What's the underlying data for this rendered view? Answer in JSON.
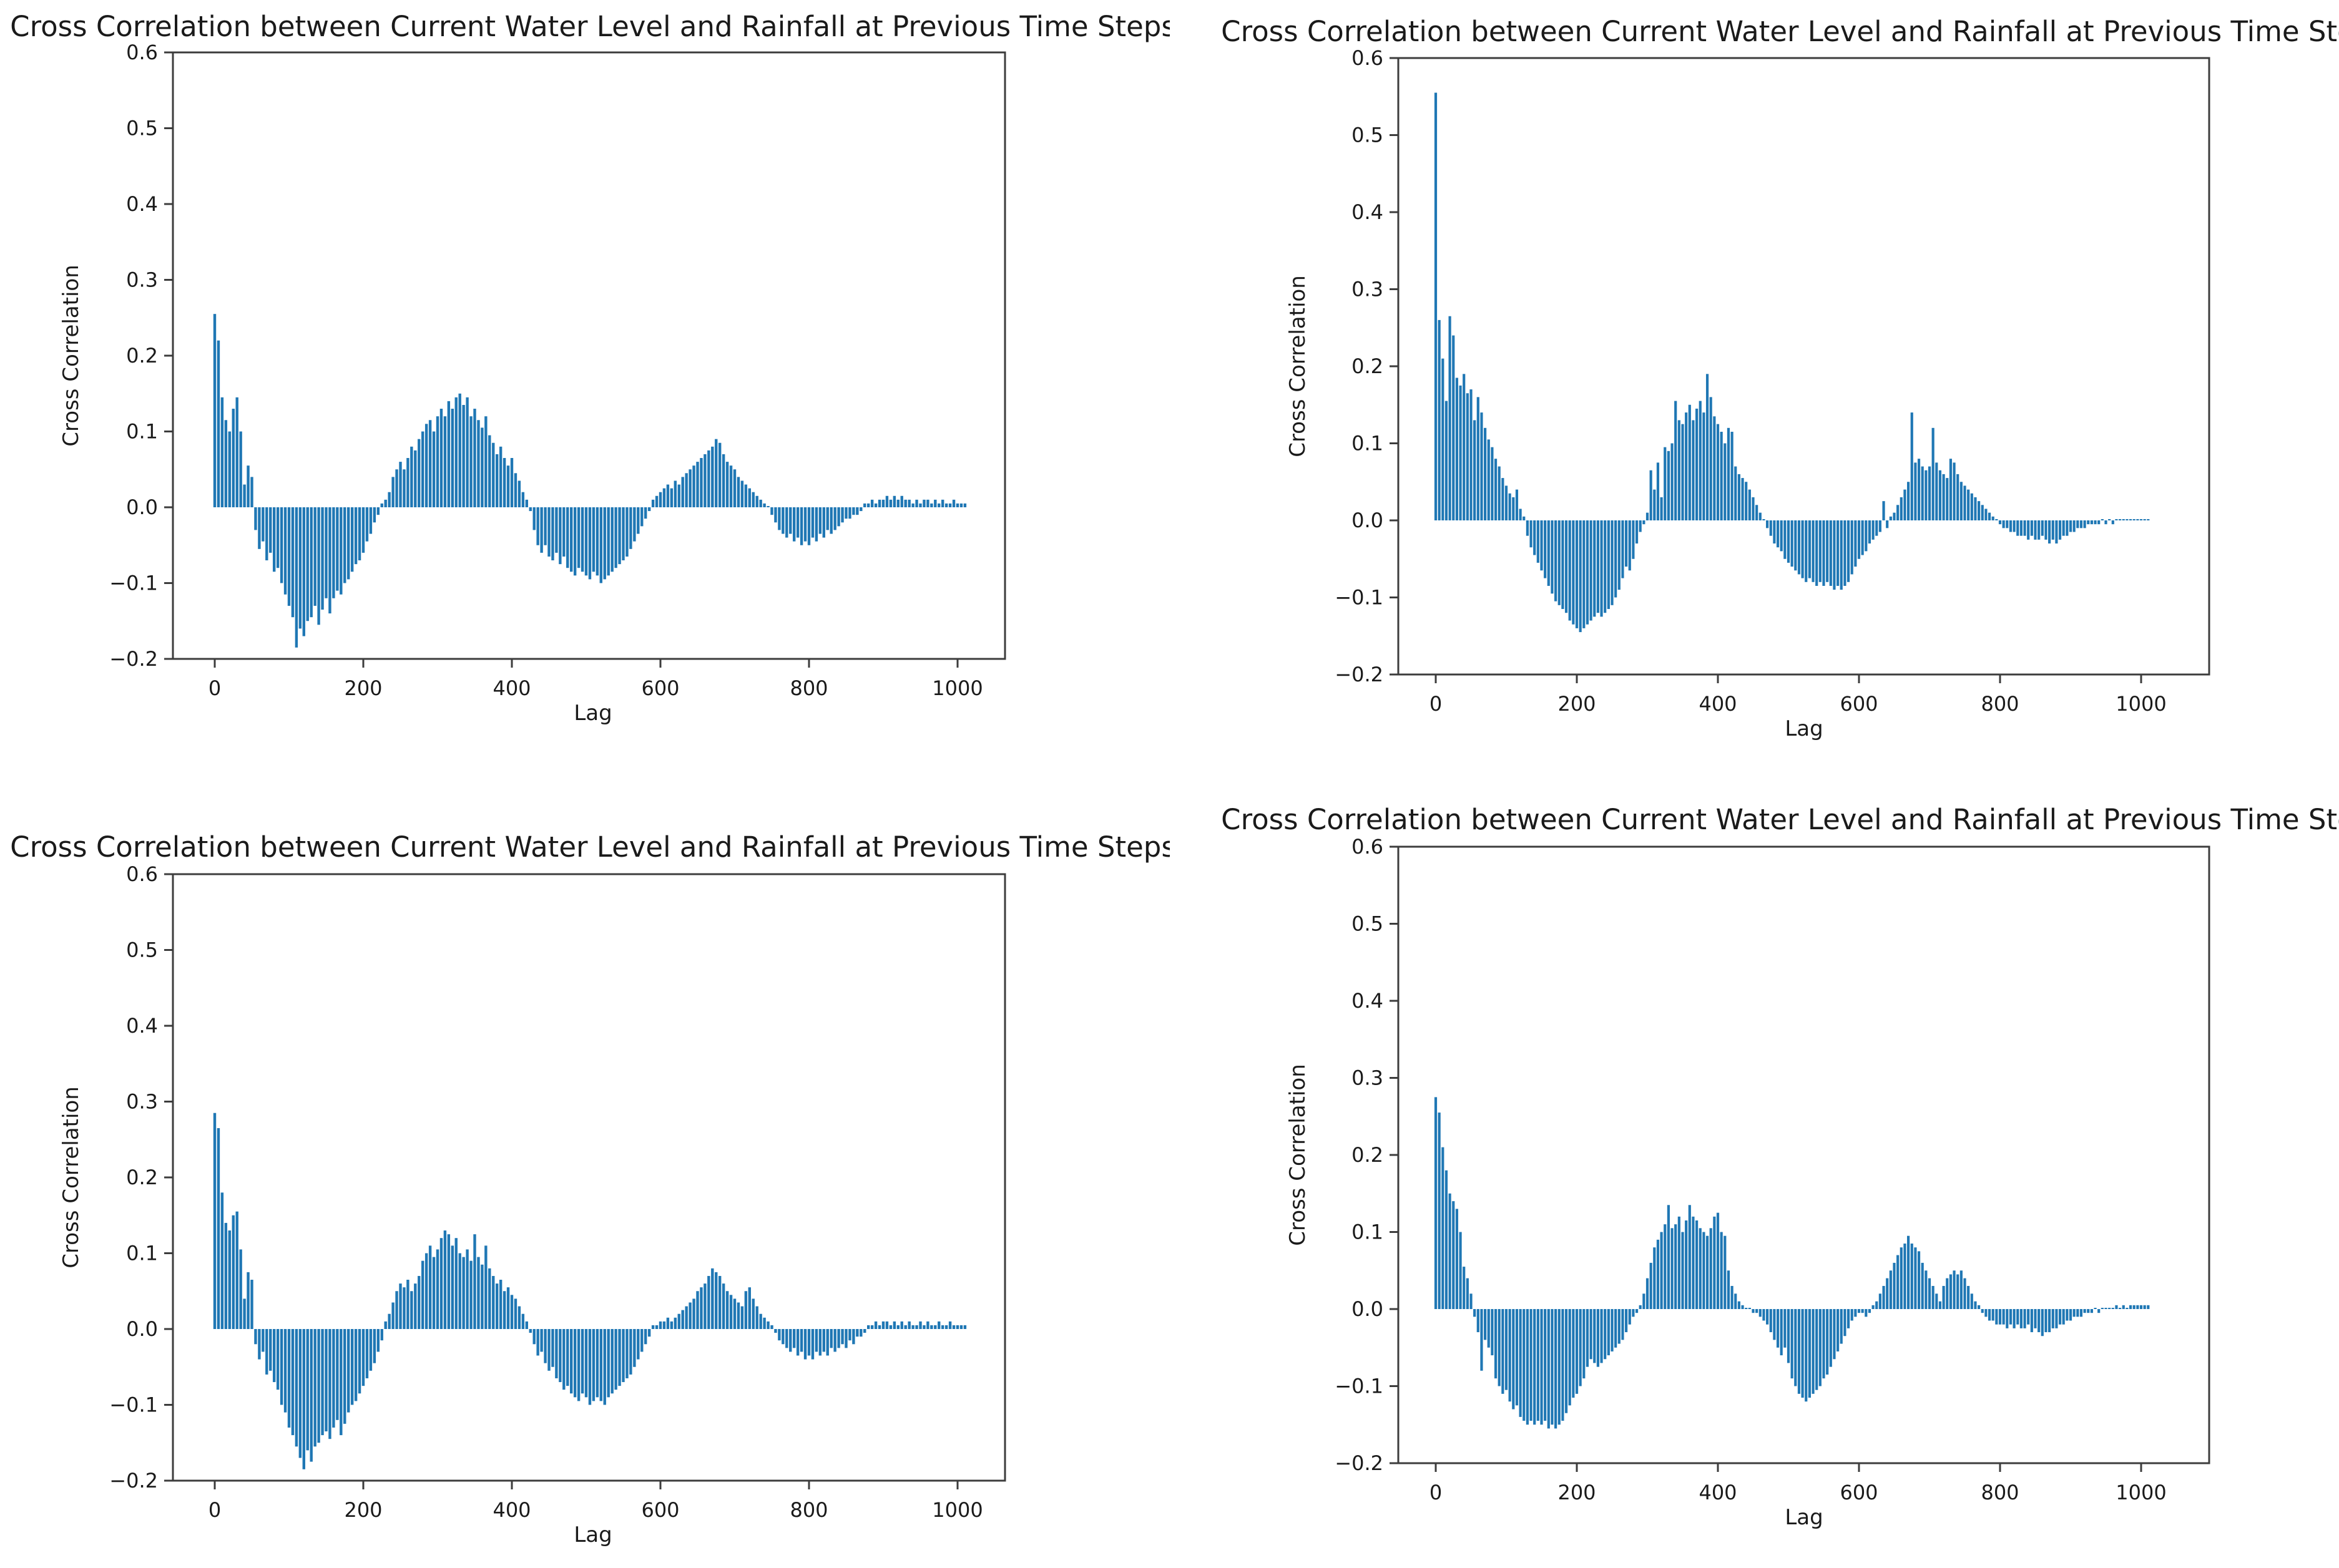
{
  "page": {
    "background": "#ffffff",
    "text_color": "#1a1a1a",
    "spine_color": "#3c3c3c"
  },
  "chart_data": [
    {
      "type": "bar",
      "title": "Cross Correlation between Current Water Level and Rainfall at Previous Time Steps",
      "xlabel": "Lag",
      "ylabel": "Cross Correlation",
      "xlim": [
        -56,
        1064
      ],
      "ylim": [
        -0.2,
        0.6
      ],
      "grid": false,
      "legend": "none",
      "bar_color": "#1f77b4",
      "xticks": [
        0,
        200,
        400,
        600,
        800,
        1000
      ],
      "xtick_labels": [
        "0",
        "200",
        "400",
        "600",
        "800",
        "1000"
      ],
      "yticks": [
        0.6,
        0.5,
        0.4,
        0.3,
        0.2,
        0.1,
        0.0,
        -0.1,
        -0.2
      ],
      "ytick_labels": [
        "0.6",
        "0.5",
        "0.4",
        "0.3",
        "0.2",
        "0.1",
        "0.0",
        "−0.1",
        "−0.2"
      ],
      "lag_start": 0,
      "lag_step": 5,
      "values": [
        0.255,
        0.22,
        0.145,
        0.115,
        0.1,
        0.13,
        0.145,
        0.1,
        0.03,
        0.055,
        0.04,
        -0.03,
        -0.055,
        -0.045,
        -0.07,
        -0.06,
        -0.085,
        -0.08,
        -0.1,
        -0.115,
        -0.13,
        -0.145,
        -0.185,
        -0.16,
        -0.17,
        -0.15,
        -0.145,
        -0.13,
        -0.155,
        -0.135,
        -0.12,
        -0.14,
        -0.12,
        -0.11,
        -0.115,
        -0.1,
        -0.095,
        -0.085,
        -0.075,
        -0.07,
        -0.06,
        -0.045,
        -0.035,
        -0.02,
        -0.01,
        0.005,
        0.01,
        0.02,
        0.04,
        0.05,
        0.06,
        0.05,
        0.065,
        0.08,
        0.075,
        0.09,
        0.1,
        0.11,
        0.115,
        0.1,
        0.12,
        0.13,
        0.12,
        0.14,
        0.13,
        0.145,
        0.15,
        0.135,
        0.145,
        0.12,
        0.13,
        0.115,
        0.105,
        0.12,
        0.095,
        0.085,
        0.07,
        0.08,
        0.065,
        0.055,
        0.065,
        0.045,
        0.035,
        0.02,
        0.01,
        -0.005,
        -0.03,
        -0.05,
        -0.06,
        -0.05,
        -0.065,
        -0.07,
        -0.06,
        -0.075,
        -0.065,
        -0.08,
        -0.085,
        -0.09,
        -0.08,
        -0.085,
        -0.09,
        -0.095,
        -0.085,
        -0.09,
        -0.1,
        -0.095,
        -0.09,
        -0.085,
        -0.08,
        -0.075,
        -0.07,
        -0.065,
        -0.055,
        -0.045,
        -0.035,
        -0.025,
        -0.015,
        -0.005,
        0.01,
        0.015,
        0.02,
        0.025,
        0.03,
        0.025,
        0.035,
        0.03,
        0.04,
        0.045,
        0.05,
        0.055,
        0.06,
        0.065,
        0.07,
        0.075,
        0.08,
        0.09,
        0.085,
        0.07,
        0.06,
        0.055,
        0.05,
        0.04,
        0.035,
        0.03,
        0.025,
        0.02,
        0.015,
        0.01,
        0.005,
        0.0,
        -0.01,
        -0.02,
        -0.03,
        -0.035,
        -0.04,
        -0.035,
        -0.045,
        -0.04,
        -0.05,
        -0.045,
        -0.05,
        -0.04,
        -0.045,
        -0.035,
        -0.04,
        -0.03,
        -0.035,
        -0.03,
        -0.025,
        -0.02,
        -0.015,
        -0.015,
        -0.01,
        -0.01,
        -0.005,
        0.005,
        0.005,
        0.01,
        0.005,
        0.01,
        0.01,
        0.015,
        0.01,
        0.015,
        0.01,
        0.015,
        0.01,
        0.01,
        0.005,
        0.01,
        0.005,
        0.01,
        0.01,
        0.005,
        0.01,
        0.005,
        0.01,
        0.005,
        0.005,
        0.01,
        0.005,
        0.005,
        0.005
      ]
    },
    {
      "type": "bar",
      "title": "Cross Correlation between Current Water Level and Rainfall at Previous Time Steps",
      "xlabel": "Lag",
      "ylabel": "Cross Correlation",
      "xlim": [
        -56,
        1096
      ],
      "ylim": [
        -0.2,
        0.6
      ],
      "grid": false,
      "legend": "none",
      "bar_color": "#1f77b4",
      "xticks": [
        0,
        200,
        400,
        600,
        800,
        1000
      ],
      "xtick_labels": [
        "0",
        "200",
        "400",
        "600",
        "800",
        "1000"
      ],
      "yticks": [
        0.6,
        0.5,
        0.4,
        0.3,
        0.2,
        0.1,
        0.0,
        -0.1,
        -0.2
      ],
      "ytick_labels": [
        "0.6",
        "0.5",
        "0.4",
        "0.3",
        "0.2",
        "0.1",
        "0.0",
        "−0.1",
        "−0.2"
      ],
      "lag_start": 0,
      "lag_step": 5,
      "values": [
        0.555,
        0.26,
        0.21,
        0.155,
        0.265,
        0.24,
        0.185,
        0.175,
        0.19,
        0.165,
        0.17,
        0.13,
        0.16,
        0.14,
        0.12,
        0.105,
        0.095,
        0.08,
        0.07,
        0.055,
        0.045,
        0.035,
        0.03,
        0.04,
        0.015,
        0.005,
        -0.02,
        -0.035,
        -0.045,
        -0.055,
        -0.065,
        -0.075,
        -0.085,
        -0.095,
        -0.105,
        -0.11,
        -0.115,
        -0.12,
        -0.13,
        -0.135,
        -0.14,
        -0.145,
        -0.14,
        -0.135,
        -0.13,
        -0.125,
        -0.12,
        -0.125,
        -0.12,
        -0.115,
        -0.11,
        -0.1,
        -0.09,
        -0.075,
        -0.06,
        -0.065,
        -0.05,
        -0.03,
        -0.015,
        -0.005,
        0.01,
        0.065,
        0.04,
        0.075,
        0.03,
        0.095,
        0.09,
        0.1,
        0.155,
        0.13,
        0.125,
        0.14,
        0.15,
        0.13,
        0.145,
        0.155,
        0.14,
        0.19,
        0.16,
        0.135,
        0.125,
        0.115,
        0.1,
        0.12,
        0.115,
        0.07,
        0.06,
        0.055,
        0.05,
        0.04,
        0.03,
        0.02,
        0.01,
        0.0,
        -0.01,
        -0.02,
        -0.03,
        -0.035,
        -0.04,
        -0.05,
        -0.055,
        -0.06,
        -0.065,
        -0.07,
        -0.075,
        -0.08,
        -0.075,
        -0.08,
        -0.085,
        -0.08,
        -0.085,
        -0.08,
        -0.085,
        -0.09,
        -0.085,
        -0.09,
        -0.085,
        -0.08,
        -0.07,
        -0.06,
        -0.05,
        -0.045,
        -0.04,
        -0.03,
        -0.025,
        -0.02,
        -0.015,
        0.025,
        -0.01,
        0.005,
        0.01,
        0.02,
        0.03,
        0.04,
        0.05,
        0.14,
        0.075,
        0.08,
        0.07,
        0.065,
        0.07,
        0.12,
        0.075,
        0.065,
        0.06,
        0.055,
        0.08,
        0.075,
        0.06,
        0.05,
        0.045,
        0.04,
        0.035,
        0.03,
        0.025,
        0.02,
        0.015,
        0.01,
        0.005,
        0.0,
        -0.005,
        -0.01,
        -0.01,
        -0.015,
        -0.015,
        -0.02,
        -0.02,
        -0.02,
        -0.025,
        -0.02,
        -0.025,
        -0.025,
        -0.02,
        -0.025,
        -0.03,
        -0.025,
        -0.03,
        -0.025,
        -0.02,
        -0.02,
        -0.015,
        -0.015,
        -0.01,
        -0.01,
        -0.01,
        -0.005,
        -0.005,
        -0.005,
        -0.005,
        0.0,
        -0.005,
        0.0,
        -0.005,
        0.0,
        0.0,
        0.0,
        0.0,
        0.0,
        0.0,
        0.0,
        0.0,
        0.0,
        0.0
      ]
    },
    {
      "type": "bar",
      "title": "Cross Correlation between Current Water Level and Rainfall at Previous Time Steps",
      "xlabel": "Lag",
      "ylabel": "Cross Correlation",
      "xlim": [
        -56,
        1064
      ],
      "ylim": [
        -0.2,
        0.6
      ],
      "grid": false,
      "legend": "none",
      "bar_color": "#1f77b4",
      "xticks": [
        0,
        200,
        400,
        600,
        800,
        1000
      ],
      "xtick_labels": [
        "0",
        "200",
        "400",
        "600",
        "800",
        "1000"
      ],
      "yticks": [
        0.6,
        0.5,
        0.4,
        0.3,
        0.2,
        0.1,
        0.0,
        -0.1,
        -0.2
      ],
      "ytick_labels": [
        "0.6",
        "0.5",
        "0.4",
        "0.3",
        "0.2",
        "0.1",
        "0.0",
        "−0.1",
        "−0.2"
      ],
      "lag_start": 0,
      "lag_step": 5,
      "values": [
        0.285,
        0.265,
        0.18,
        0.14,
        0.13,
        0.15,
        0.155,
        0.105,
        0.04,
        0.075,
        0.065,
        -0.02,
        -0.04,
        -0.03,
        -0.06,
        -0.055,
        -0.07,
        -0.08,
        -0.1,
        -0.11,
        -0.13,
        -0.14,
        -0.155,
        -0.17,
        -0.185,
        -0.16,
        -0.175,
        -0.155,
        -0.15,
        -0.14,
        -0.135,
        -0.145,
        -0.13,
        -0.12,
        -0.14,
        -0.125,
        -0.11,
        -0.1,
        -0.095,
        -0.085,
        -0.075,
        -0.065,
        -0.055,
        -0.045,
        -0.03,
        -0.015,
        0.01,
        0.02,
        0.035,
        0.05,
        0.06,
        0.055,
        0.065,
        0.05,
        0.06,
        0.07,
        0.09,
        0.1,
        0.11,
        0.095,
        0.105,
        0.12,
        0.13,
        0.125,
        0.11,
        0.12,
        0.1,
        0.095,
        0.105,
        0.09,
        0.125,
        0.095,
        0.085,
        0.11,
        0.08,
        0.07,
        0.06,
        0.065,
        0.05,
        0.055,
        0.045,
        0.04,
        0.03,
        0.02,
        0.01,
        -0.005,
        -0.02,
        -0.035,
        -0.03,
        -0.045,
        -0.055,
        -0.05,
        -0.065,
        -0.07,
        -0.08,
        -0.075,
        -0.085,
        -0.09,
        -0.095,
        -0.085,
        -0.09,
        -0.1,
        -0.095,
        -0.09,
        -0.095,
        -0.1,
        -0.09,
        -0.085,
        -0.08,
        -0.075,
        -0.07,
        -0.065,
        -0.06,
        -0.05,
        -0.04,
        -0.03,
        -0.02,
        -0.01,
        0.005,
        0.005,
        0.01,
        0.01,
        0.015,
        0.01,
        0.015,
        0.02,
        0.025,
        0.03,
        0.035,
        0.04,
        0.05,
        0.055,
        0.06,
        0.07,
        0.08,
        0.075,
        0.07,
        0.06,
        0.05,
        0.045,
        0.04,
        0.035,
        0.03,
        0.05,
        0.055,
        0.04,
        0.03,
        0.02,
        0.015,
        0.01,
        0.005,
        -0.005,
        -0.015,
        -0.02,
        -0.025,
        -0.03,
        -0.025,
        -0.035,
        -0.03,
        -0.04,
        -0.035,
        -0.04,
        -0.03,
        -0.035,
        -0.03,
        -0.035,
        -0.025,
        -0.03,
        -0.025,
        -0.02,
        -0.025,
        -0.015,
        -0.02,
        -0.01,
        -0.01,
        -0.005,
        0.005,
        0.005,
        0.01,
        0.005,
        0.01,
        0.01,
        0.005,
        0.01,
        0.005,
        0.01,
        0.005,
        0.01,
        0.005,
        0.005,
        0.01,
        0.005,
        0.01,
        0.005,
        0.005,
        0.01,
        0.005,
        0.005,
        0.01,
        0.005,
        0.005,
        0.005,
        0.005
      ]
    },
    {
      "type": "bar",
      "title": "Cross Correlation between Current Water Level and Rainfall at Previous Time Steps",
      "xlabel": "Lag",
      "ylabel": "Cross Correlation",
      "xlim": [
        -56,
        1096
      ],
      "ylim": [
        -0.2,
        0.6
      ],
      "grid": false,
      "legend": "none",
      "bar_color": "#1f77b4",
      "xticks": [
        0,
        200,
        400,
        600,
        800,
        1000
      ],
      "xtick_labels": [
        "0",
        "200",
        "400",
        "600",
        "800",
        "1000"
      ],
      "yticks": [
        0.6,
        0.5,
        0.4,
        0.3,
        0.2,
        0.1,
        0.0,
        -0.1,
        -0.2
      ],
      "ytick_labels": [
        "0.6",
        "0.5",
        "0.4",
        "0.3",
        "0.2",
        "0.1",
        "0.0",
        "−0.1",
        "−0.2"
      ],
      "lag_start": 0,
      "lag_step": 5,
      "values": [
        0.275,
        0.255,
        0.21,
        0.18,
        0.15,
        0.14,
        0.13,
        0.1,
        0.055,
        0.04,
        0.02,
        -0.01,
        -0.03,
        -0.08,
        -0.04,
        -0.05,
        -0.06,
        -0.09,
        -0.1,
        -0.11,
        -0.105,
        -0.12,
        -0.13,
        -0.125,
        -0.14,
        -0.145,
        -0.15,
        -0.145,
        -0.15,
        -0.145,
        -0.15,
        -0.145,
        -0.155,
        -0.15,
        -0.155,
        -0.15,
        -0.145,
        -0.135,
        -0.125,
        -0.115,
        -0.11,
        -0.1,
        -0.09,
        -0.075,
        -0.065,
        -0.07,
        -0.075,
        -0.07,
        -0.065,
        -0.06,
        -0.055,
        -0.05,
        -0.045,
        -0.04,
        -0.03,
        -0.02,
        -0.01,
        -0.005,
        0.005,
        0.02,
        0.04,
        0.06,
        0.08,
        0.09,
        0.1,
        0.11,
        0.135,
        0.105,
        0.11,
        0.12,
        0.1,
        0.115,
        0.135,
        0.12,
        0.115,
        0.105,
        0.1,
        0.095,
        0.105,
        0.12,
        0.125,
        0.1,
        0.095,
        0.05,
        0.03,
        0.02,
        0.01,
        0.005,
        0.0,
        0.0,
        -0.005,
        -0.005,
        -0.01,
        -0.015,
        -0.02,
        -0.03,
        -0.04,
        -0.05,
        -0.06,
        -0.05,
        -0.07,
        -0.09,
        -0.1,
        -0.11,
        -0.115,
        -0.12,
        -0.115,
        -0.11,
        -0.105,
        -0.1,
        -0.09,
        -0.085,
        -0.075,
        -0.065,
        -0.055,
        -0.045,
        -0.035,
        -0.025,
        -0.015,
        -0.01,
        -0.005,
        -0.005,
        -0.01,
        -0.005,
        0.005,
        0.01,
        0.02,
        0.03,
        0.04,
        0.05,
        0.06,
        0.07,
        0.08,
        0.085,
        0.095,
        0.085,
        0.08,
        0.075,
        0.06,
        0.05,
        0.04,
        0.03,
        0.02,
        0.01,
        0.03,
        0.04,
        0.045,
        0.05,
        0.045,
        0.05,
        0.04,
        0.03,
        0.02,
        0.01,
        0.005,
        -0.005,
        -0.01,
        -0.015,
        -0.015,
        -0.02,
        -0.02,
        -0.02,
        -0.025,
        -0.02,
        -0.025,
        -0.02,
        -0.025,
        -0.025,
        -0.02,
        -0.03,
        -0.025,
        -0.03,
        -0.035,
        -0.03,
        -0.03,
        -0.025,
        -0.025,
        -0.02,
        -0.02,
        -0.015,
        -0.015,
        -0.01,
        -0.01,
        -0.01,
        -0.005,
        -0.005,
        -0.005,
        0.0,
        -0.005,
        0.0,
        0.0,
        0.0,
        0.0,
        0.005,
        0.0,
        0.005,
        0.0,
        0.005,
        0.005,
        0.005,
        0.005,
        0.005,
        0.005
      ]
    }
  ]
}
